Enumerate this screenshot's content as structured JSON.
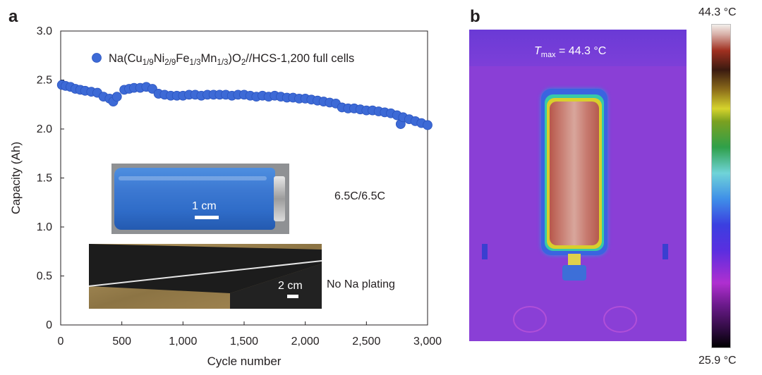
{
  "panel_a": {
    "letter": "a",
    "cell_scale_label": "1 cm",
    "electrode_scale_label": "2 cm",
    "rate_label": "6.5C/6.5C",
    "plating_label": "No Na plating"
  },
  "panel_b": {
    "letter": "b",
    "tmax_symbol": "T",
    "tmax_subscript": "max",
    "tmax_value": " = 44.3 °C",
    "colorbar_max": "44.3 °C",
    "colorbar_min": "25.9 °C"
  },
  "colors": {
    "marker": "#3d6ad6",
    "marker_edge": "#2b54bf",
    "axis": "#231f20"
  },
  "chart_data": {
    "type": "scatter",
    "xlabel": "Cycle number",
    "ylabel": "Capacity (Ah)",
    "xlim": [
      0,
      3000
    ],
    "ylim": [
      0,
      3.0
    ],
    "xticks": [
      0,
      500,
      1000,
      1500,
      2000,
      2500,
      3000
    ],
    "xtick_labels": [
      "0",
      "500",
      "1,000",
      "1,500",
      "2,000",
      "2,500",
      "3,000"
    ],
    "yticks": [
      0,
      0.5,
      1.0,
      1.5,
      2.0,
      2.5,
      3.0
    ],
    "ytick_labels": [
      "0",
      "0.5",
      "1.0",
      "1.5",
      "2.0",
      "2.5",
      "3.0"
    ],
    "grid": false,
    "legend": "Na(Cu1/9Ni2/9Fe1/3Mn1/3)O2//HCS-1,200 full cells",
    "legend_position": "top-left",
    "series": [
      {
        "name": "Na(Cu1/9Ni2/9Fe1/3Mn1/3)O2//HCS-1,200 full cells",
        "x": [
          10,
          40,
          80,
          120,
          160,
          200,
          250,
          300,
          350,
          400,
          430,
          460,
          520,
          560,
          600,
          650,
          700,
          750,
          800,
          850,
          900,
          950,
          1000,
          1050,
          1100,
          1150,
          1200,
          1250,
          1300,
          1350,
          1400,
          1450,
          1500,
          1550,
          1600,
          1650,
          1700,
          1750,
          1800,
          1850,
          1900,
          1950,
          2000,
          2050,
          2100,
          2150,
          2200,
          2250,
          2300,
          2350,
          2400,
          2450,
          2500,
          2550,
          2600,
          2650,
          2700,
          2750,
          2780,
          2800,
          2850,
          2900,
          2950,
          3000
        ],
        "y": [
          2.45,
          2.44,
          2.43,
          2.41,
          2.4,
          2.39,
          2.38,
          2.37,
          2.33,
          2.31,
          2.28,
          2.33,
          2.4,
          2.41,
          2.42,
          2.42,
          2.43,
          2.41,
          2.36,
          2.35,
          2.34,
          2.34,
          2.34,
          2.35,
          2.35,
          2.34,
          2.35,
          2.35,
          2.35,
          2.35,
          2.34,
          2.35,
          2.35,
          2.34,
          2.33,
          2.34,
          2.33,
          2.34,
          2.33,
          2.32,
          2.32,
          2.31,
          2.31,
          2.3,
          2.29,
          2.28,
          2.27,
          2.26,
          2.22,
          2.21,
          2.21,
          2.2,
          2.19,
          2.19,
          2.18,
          2.17,
          2.16,
          2.14,
          2.05,
          2.12,
          2.1,
          2.08,
          2.06,
          2.04
        ]
      }
    ]
  }
}
